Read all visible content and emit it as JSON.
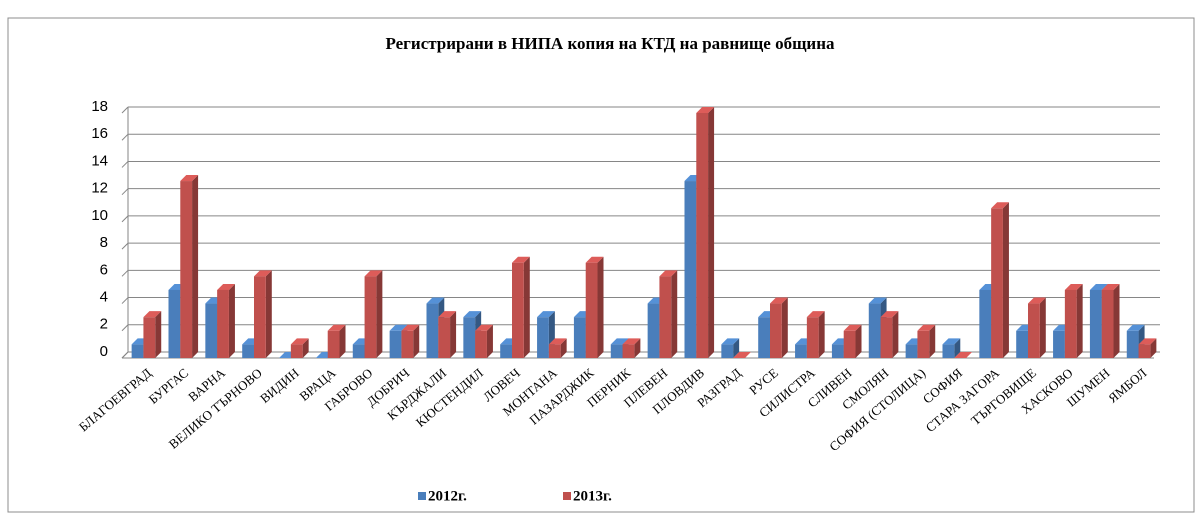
{
  "chart_data": {
    "type": "bar",
    "title": "Регистрирани в НИПА копия на КТД на равнище община",
    "categories": [
      "БЛАГОЕВГРАД",
      "БУРГАС",
      "ВАРНА",
      "ВЕЛИКО ТЪРНОВО",
      "ВИДИН",
      "ВРАЦА",
      "ГАБРОВО",
      "ДОБРИЧ",
      "КЪРДЖАЛИ",
      "КЮСТЕНДИЛ",
      "ЛОВЕЧ",
      "МОНТАНА",
      "ПАЗАРДЖИК",
      "ПЕРНИК",
      "ПЛЕВЕН",
      "ПЛОВДИВ",
      "РАЗГРАД",
      "РУСЕ",
      "СИЛИСТРА",
      "СЛИВЕН",
      "СМОЛЯН",
      "СОФИЯ (СТОЛИЦА)",
      "СОФИЯ",
      "СТАРА ЗАГОРА",
      "ТЪРГОВИЩЕ",
      "ХАСКОВО",
      "ШУМЕН",
      "ЯМБОЛ"
    ],
    "series": [
      {
        "name": "2012г.",
        "color": "#4a7ebb",
        "values": [
          1,
          5,
          4,
          1,
          0,
          0,
          1,
          2,
          4,
          3,
          1,
          3,
          3,
          1,
          4,
          13,
          1,
          3,
          1,
          1,
          4,
          1,
          1,
          5,
          2,
          2,
          5,
          2
        ]
      },
      {
        "name": "2013г.",
        "color": "#c0504d",
        "values": [
          3,
          13,
          5,
          6,
          1,
          2,
          6,
          2,
          3,
          2,
          7,
          1,
          7,
          1,
          6,
          18,
          0,
          4,
          3,
          2,
          3,
          2,
          0,
          11,
          4,
          5,
          5,
          1
        ]
      }
    ],
    "ylim": [
      0,
      18
    ],
    "yticks": [
      0,
      2,
      4,
      6,
      8,
      10,
      12,
      14,
      16,
      18
    ],
    "grid": true,
    "legend": "bottom"
  }
}
